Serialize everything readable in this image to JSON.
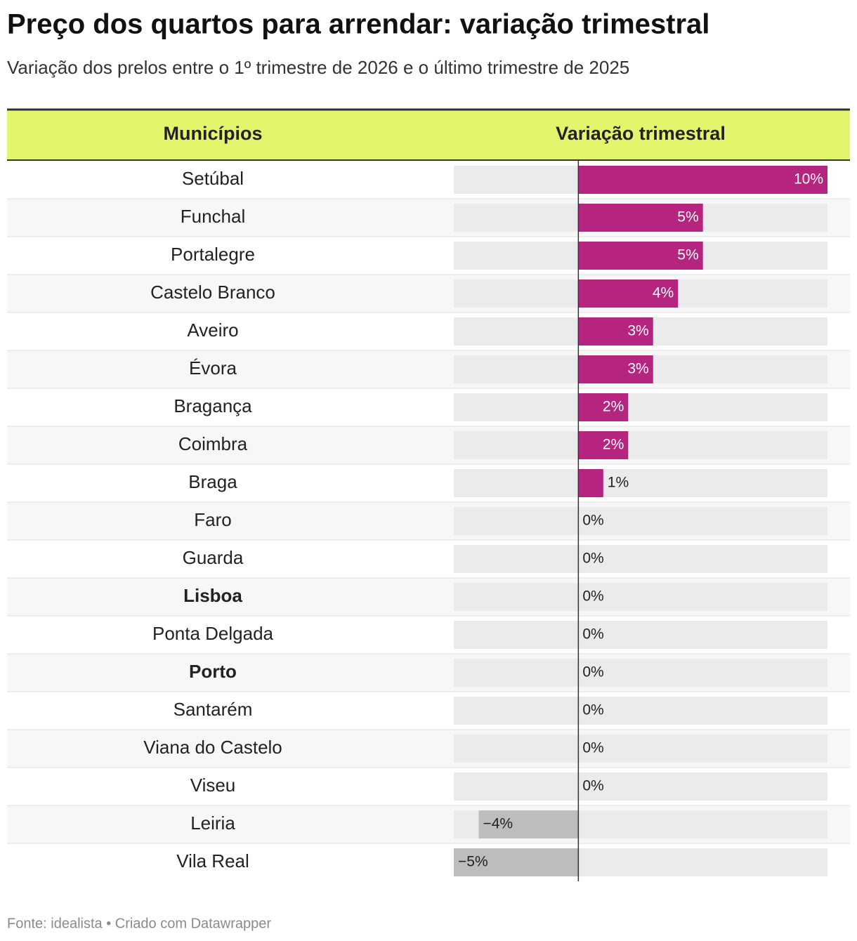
{
  "header": {
    "title": "Preço dos quartos para arrendar: variação trimestral",
    "subtitle": "Variação dos prelos entre o 1º trimestre de 2026 e o último trimestre de 2025"
  },
  "chart_data": {
    "type": "table-bar",
    "columns": [
      "Municípios",
      "Variação trimestral"
    ],
    "categories": [
      "Setúbal",
      "Funchal",
      "Portalegre",
      "Castelo Branco",
      "Aveiro",
      "Évora",
      "Bragança",
      "Coimbra",
      "Braga",
      "Faro",
      "Guarda",
      "Lisboa",
      "Ponta Delgada",
      "Porto",
      "Santarém",
      "Viana do Castelo",
      "Viseu",
      "Leiria",
      "Vila Real"
    ],
    "bold_categories": [
      false,
      false,
      false,
      false,
      false,
      false,
      false,
      false,
      false,
      false,
      false,
      true,
      false,
      true,
      false,
      false,
      false,
      false,
      false
    ],
    "values": [
      10,
      5,
      5,
      4,
      3,
      3,
      2,
      2,
      1,
      0,
      0,
      0,
      0,
      0,
      0,
      0,
      0,
      -4,
      -5
    ],
    "value_labels": [
      "10%",
      "5%",
      "5%",
      "4%",
      "3%",
      "3%",
      "2%",
      "2%",
      "1%",
      "0%",
      "0%",
      "0%",
      "0%",
      "0%",
      "0%",
      "0%",
      "0%",
      "−4%",
      "−5%"
    ],
    "positive_color": "#b5247f",
    "negative_color": "#bdbdbd",
    "header_color": "#e3f56c"
  },
  "footer": "Fonte: idealista • Criado com Datawrapper"
}
